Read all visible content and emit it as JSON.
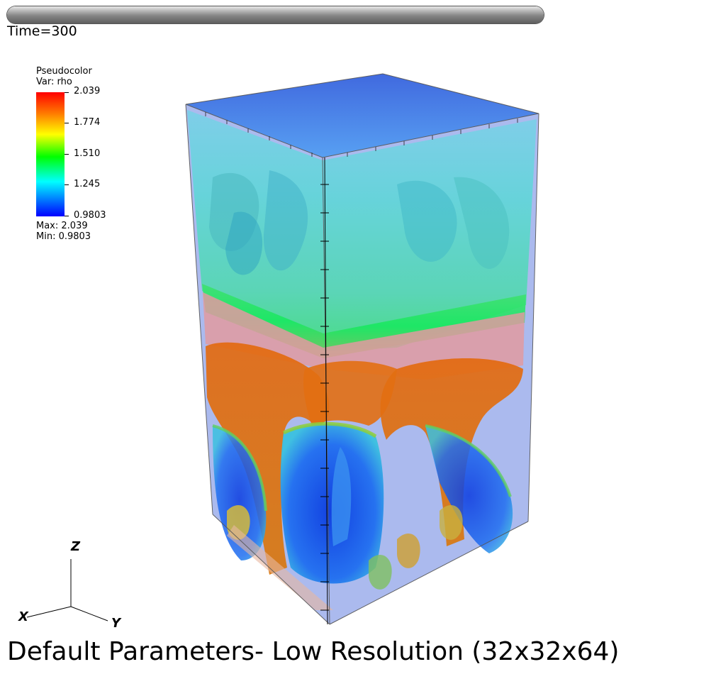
{
  "time_label": "Time=300",
  "progress": {
    "fraction": 1.0
  },
  "legend": {
    "title": "Pseudocolor",
    "variable": "Var: rho",
    "ticks": [
      "2.039",
      "1.774",
      "1.510",
      "1.245",
      "0.9803"
    ],
    "max_text": "Max:  2.039",
    "min_text": "Min:  0.9803",
    "colors": [
      "#ff0000",
      "#ffff00",
      "#00ff00",
      "#00ffff",
      "#0000ff"
    ]
  },
  "triad": {
    "x": "X",
    "y": "Y",
    "z": "Z"
  },
  "caption": "Default Parameters- Low Resolution (32x32x64)"
}
